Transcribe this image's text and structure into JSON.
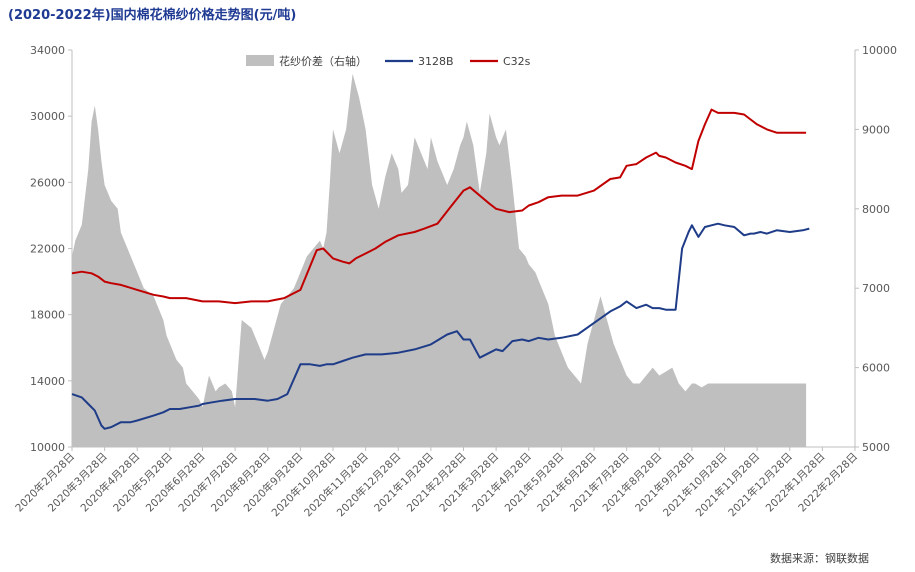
{
  "title": "(2020-2022年)国内棉花棉纱价格走势图(元/吨)",
  "source": "数据来源：钢联数据",
  "chart_data": {
    "type": "line+area",
    "title": "(2020-2022年)国内棉花棉纱价格走势图(元/吨)",
    "legend_position": "top-center",
    "left_axis": {
      "min": 10000,
      "max": 34000,
      "ticks": [
        "10000",
        "14000",
        "18000",
        "22000",
        "26000",
        "30000",
        "34000"
      ]
    },
    "right_axis": {
      "min": 5000,
      "max": 10000,
      "ticks": [
        "5000",
        "6000",
        "7000",
        "8000",
        "9000",
        "10000"
      ]
    },
    "x_ticks": [
      "2020年2月28日",
      "2020年3月28日",
      "2020年4月28日",
      "2020年5月28日",
      "2020年6月28日",
      "2020年7月28日",
      "2020年8月28日",
      "2020年9月28日",
      "2020年10月28日",
      "2020年11月28日",
      "2020年12月28日",
      "2021年1月28日",
      "2021年2月28日",
      "2021年3月28日",
      "2021年4月28日",
      "2021年5月28日",
      "2021年6月28日",
      "2021年7月28日",
      "2021年8月28日",
      "2021年9月28日",
      "2021年10月28日",
      "2021年11月28日",
      "2021年12月28日",
      "2022年1月28日",
      "2022年2月28日"
    ],
    "series": [
      {
        "name": "花纱价差（右轴）",
        "axis": "right",
        "kind": "area",
        "color": "#bfbfbf",
        "x": [
          0,
          0.1,
          0.3,
          0.5,
          0.6,
          0.7,
          0.8,
          0.9,
          1.0,
          1.2,
          1.4,
          1.5,
          1.7,
          1.9,
          2.0,
          2.2,
          2.5,
          2.6,
          2.8,
          2.9,
          3.0,
          3.2,
          3.4,
          3.5,
          3.7,
          3.9,
          4.0,
          4.2,
          4.4,
          4.5,
          4.7,
          4.9,
          5.0,
          5.2,
          5.5,
          5.7,
          5.9,
          6.0,
          6.2,
          6.4,
          6.6,
          6.8,
          7.0,
          7.2,
          7.4,
          7.6,
          7.7,
          7.8,
          7.9,
          8.0,
          8.2,
          8.4,
          8.6,
          8.8,
          9.0,
          9.2,
          9.4,
          9.6,
          9.8,
          10.0,
          10.1,
          10.3,
          10.5,
          10.7,
          10.9,
          11.0,
          11.2,
          11.4,
          11.5,
          11.7,
          11.9,
          12.0,
          12.1,
          12.3,
          12.5,
          12.7,
          12.8,
          13.0,
          13.1,
          13.3,
          13.5,
          13.7,
          13.9,
          14.0,
          14.2,
          14.4,
          14.6,
          14.8,
          15.0,
          15.2,
          15.4,
          15.6,
          15.8,
          16.0,
          16.2,
          16.4,
          16.6,
          16.8,
          17.0,
          17.2,
          17.4,
          17.6,
          17.8,
          18.0,
          18.2,
          18.4,
          18.6,
          18.8,
          19.0,
          19.1,
          19.3,
          19.5,
          19.7,
          19.9,
          20.0,
          20.2,
          20.4,
          20.6,
          20.8,
          21.0,
          21.2,
          21.4,
          21.6,
          21.8,
          22.0,
          22.2,
          22.4,
          22.5
        ],
        "values": [
          7400,
          7600,
          7800,
          8500,
          9100,
          9300,
          9000,
          8600,
          8300,
          8100,
          8000,
          7700,
          7500,
          7300,
          7200,
          7000,
          6900,
          6800,
          6600,
          6400,
          6300,
          6100,
          6000,
          5800,
          5700,
          5600,
          5500,
          5900,
          5700,
          5750,
          5800,
          5700,
          5500,
          6600,
          6500,
          6300,
          6100,
          6200,
          6500,
          6800,
          6900,
          7000,
          7200,
          7400,
          7500,
          7600,
          7500,
          7700,
          8300,
          9000,
          8700,
          9000,
          9700,
          9400,
          9000,
          8300,
          8000,
          8400,
          8700,
          8500,
          8200,
          8300,
          8900,
          8700,
          8500,
          8900,
          8600,
          8400,
          8300,
          8500,
          8800,
          8900,
          9100,
          8800,
          8200,
          8700,
          9200,
          8900,
          8800,
          9000,
          8300,
          7500,
          7400,
          7300,
          7200,
          7000,
          6800,
          6400,
          6200,
          6000,
          5900,
          5800,
          6300,
          6600,
          6900,
          6600,
          6300,
          6100,
          5900,
          5800,
          5800,
          5900,
          6000,
          5900,
          5950,
          6000,
          5800,
          5700,
          5800,
          5800,
          5750,
          5800,
          5800,
          5800,
          5800,
          5800,
          5800,
          5800,
          5800,
          5800,
          5800,
          5800,
          5800,
          5800,
          5800,
          5800,
          5800,
          5800
        ],
        "note_override": true
      },
      {
        "name": "3128B",
        "axis": "left",
        "kind": "line",
        "color": "#1f3c88",
        "x": [
          0,
          0.3,
          0.5,
          0.7,
          0.9,
          1.0,
          1.2,
          1.5,
          1.8,
          2.0,
          2.5,
          2.8,
          3.0,
          3.3,
          3.6,
          3.9,
          4.0,
          4.3,
          4.6,
          5.0,
          5.3,
          5.6,
          6.0,
          6.3,
          6.6,
          7.0,
          7.3,
          7.6,
          7.8,
          8.0,
          8.3,
          8.6,
          9.0,
          9.5,
          10.0,
          10.5,
          11.0,
          11.5,
          11.8,
          12.0,
          12.2,
          12.5,
          12.8,
          13.0,
          13.2,
          13.5,
          13.8,
          14.0,
          14.3,
          14.6,
          15.0,
          15.5,
          16.0,
          16.5,
          16.8,
          17.0,
          17.3,
          17.6,
          17.8,
          18.0,
          18.2,
          18.5,
          18.7,
          18.9,
          19.0,
          19.2,
          19.4,
          19.6,
          19.8,
          20.0,
          20.3,
          20.6,
          20.8,
          20.9,
          21.1,
          21.3,
          21.6,
          22.0,
          22.4,
          22.6
        ],
        "values": [
          13200,
          13000,
          12600,
          12200,
          11300,
          11100,
          11200,
          11500,
          11500,
          11600,
          11900,
          12100,
          12300,
          12300,
          12400,
          12500,
          12600,
          12700,
          12800,
          12900,
          12900,
          12900,
          12800,
          12900,
          13200,
          15000,
          15000,
          14900,
          15000,
          15000,
          15200,
          15400,
          15600,
          15600,
          15700,
          15900,
          16200,
          16800,
          17000,
          16500,
          16500,
          15400,
          15700,
          15900,
          15800,
          16400,
          16500,
          16400,
          16600,
          16500,
          16600,
          16800,
          17500,
          18200,
          18500,
          18800,
          18400,
          18600,
          18400,
          18400,
          18300,
          18300,
          22000,
          23000,
          23400,
          22700,
          23300,
          23400,
          23500,
          23400,
          23300,
          22800,
          22900,
          22900,
          23000,
          22900,
          23100,
          23000,
          23100,
          23200
        ]
      },
      {
        "name": "C32s",
        "axis": "left",
        "kind": "line",
        "color": "#c00000",
        "x": [
          0,
          0.3,
          0.6,
          0.8,
          1.0,
          1.2,
          1.5,
          2.0,
          2.5,
          2.8,
          3.0,
          3.5,
          4.0,
          4.5,
          5.0,
          5.5,
          6.0,
          6.5,
          7.0,
          7.5,
          7.7,
          7.9,
          8.0,
          8.3,
          8.5,
          8.7,
          9.0,
          9.3,
          9.6,
          10.0,
          10.5,
          10.8,
          11.2,
          11.6,
          12.0,
          12.2,
          12.5,
          12.8,
          13.0,
          13.4,
          13.8,
          14.0,
          14.3,
          14.6,
          15.0,
          15.5,
          16.0,
          16.5,
          16.8,
          17.0,
          17.3,
          17.6,
          17.9,
          18.0,
          18.2,
          18.5,
          18.8,
          19.0,
          19.2,
          19.4,
          19.6,
          19.8,
          20.0,
          20.3,
          20.6,
          20.8,
          21.0,
          21.3,
          21.6,
          22.0,
          22.5
        ],
        "values": [
          20500,
          20600,
          20500,
          20300,
          20000,
          19900,
          19800,
          19500,
          19200,
          19100,
          19000,
          19000,
          18800,
          18800,
          18700,
          18800,
          18800,
          19000,
          19500,
          21900,
          22000,
          21600,
          21400,
          21200,
          21100,
          21400,
          21700,
          22000,
          22400,
          22800,
          23000,
          23200,
          23500,
          24500,
          25500,
          25700,
          25200,
          24700,
          24400,
          24200,
          24300,
          24600,
          24800,
          25100,
          25200,
          25200,
          25500,
          26200,
          26300,
          27000,
          27100,
          27500,
          27800,
          27600,
          27500,
          27200,
          27000,
          26800,
          28500,
          29500,
          30400,
          30200,
          30200,
          30200,
          30100,
          29800,
          29500,
          29200,
          29000,
          29000,
          29000
        ]
      }
    ]
  }
}
